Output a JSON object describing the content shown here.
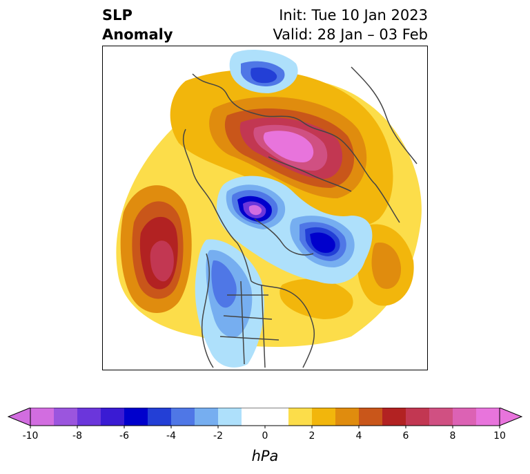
{
  "title": {
    "variable_line1": "SLP",
    "variable_line2": "Anomaly",
    "init": "Init: Tue 10 Jan 2023",
    "valid": "Valid: 28 Jan – 03 Feb"
  },
  "colorbar": {
    "unit_label": "hPa",
    "ticks": [
      "-10",
      "-8",
      "-6",
      "-4",
      "-2",
      "0",
      "2",
      "4",
      "6",
      "8",
      "10"
    ],
    "min": -10,
    "max": 10,
    "extend": "both",
    "colors": [
      "#d26de0",
      "#9b55de",
      "#6b36db",
      "#3a1bd3",
      "#0000cc",
      "#233fd6",
      "#4f77e6",
      "#76aef0",
      "#aee0fb",
      "#ffffff",
      "#ffffff",
      "#fcdd4a",
      "#f2b60c",
      "#e08c0e",
      "#c9561a",
      "#b22222",
      "#c23752",
      "#d05082",
      "#dc62b4",
      "#e874dc"
    ],
    "under_color": "#d26de0",
    "over_color": "#e874dc"
  }
}
